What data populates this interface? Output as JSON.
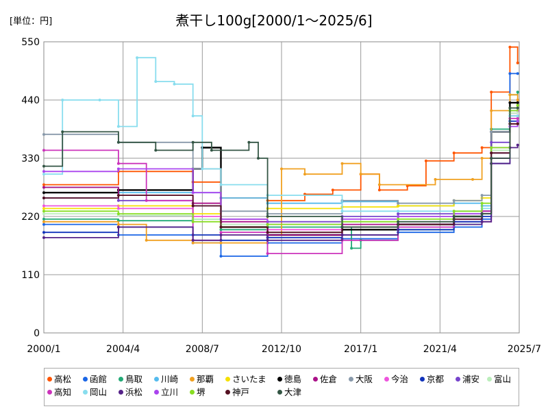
{
  "unit_label": "[単位：円]",
  "chart_data": {
    "type": "line",
    "title": "煮干し100g[2000/1～2025/6]",
    "x_tick_labels": [
      "2000/1",
      "2004/4",
      "2008/7",
      "2012/10",
      "2017/1",
      "2021/4",
      "2025/7"
    ],
    "y_tick_labels": [
      "0",
      "110",
      "220",
      "330",
      "440",
      "550"
    ],
    "ylim": [
      0,
      550
    ],
    "x_range": [
      "2000/1",
      "2025/7"
    ],
    "grid": true,
    "legend_position": "bottom",
    "series": [
      {
        "name": "高松",
        "color": "#ff5500",
        "points": [
          [
            "2000/1",
            280
          ],
          [
            "2004/1",
            305
          ],
          [
            "2008/1",
            285
          ],
          [
            "2009/7",
            255
          ],
          [
            "2012/1",
            250
          ],
          [
            "2014/1",
            262
          ],
          [
            "2015/7",
            270
          ],
          [
            "2017/1",
            300
          ],
          [
            "2018/1",
            270
          ],
          [
            "2019/7",
            278
          ],
          [
            "2020/7",
            325
          ],
          [
            "2022/1",
            340
          ],
          [
            "2023/7",
            350
          ],
          [
            "2024/1",
            455
          ],
          [
            "2025/1",
            540
          ],
          [
            "2025/6",
            510
          ]
        ]
      },
      {
        "name": "函館",
        "color": "#1a66e6",
        "points": [
          [
            "2000/1",
            205
          ],
          [
            "2004/1",
            185
          ],
          [
            "2008/1",
            170
          ],
          [
            "2009/7",
            145
          ],
          [
            "2012/1",
            170
          ],
          [
            "2016/1",
            178
          ],
          [
            "2019/1",
            190
          ],
          [
            "2022/1",
            200
          ],
          [
            "2023/7",
            215
          ],
          [
            "2024/1",
            330
          ],
          [
            "2025/1",
            490
          ],
          [
            "2025/6",
            490
          ]
        ]
      },
      {
        "name": "鳥取",
        "color": "#22aa77",
        "points": [
          [
            "2000/1",
            215
          ],
          [
            "2004/1",
            212
          ],
          [
            "2008/1",
            215
          ],
          [
            "2009/7",
            195
          ],
          [
            "2012/1",
            200
          ],
          [
            "2016/7",
            160
          ],
          [
            "2017/1",
            175
          ],
          [
            "2019/1",
            195
          ],
          [
            "2022/1",
            205
          ],
          [
            "2023/7",
            225
          ],
          [
            "2024/1",
            385
          ],
          [
            "2025/1",
            450
          ],
          [
            "2025/6",
            455
          ]
        ]
      },
      {
        "name": "川崎",
        "color": "#55bbee",
        "points": [
          [
            "2000/1",
            275
          ],
          [
            "2004/1",
            265
          ],
          [
            "2008/1",
            265
          ],
          [
            "2009/7",
            255
          ],
          [
            "2012/1",
            245
          ],
          [
            "2016/1",
            248
          ],
          [
            "2019/1",
            240
          ],
          [
            "2022/1",
            245
          ],
          [
            "2023/7",
            240
          ],
          [
            "2024/1",
            350
          ],
          [
            "2025/1",
            420
          ],
          [
            "2025/6",
            430
          ]
        ]
      },
      {
        "name": "那覇",
        "color": "#f0a020",
        "points": [
          [
            "2000/1",
            210
          ],
          [
            "2004/1",
            205
          ],
          [
            "2005/7",
            175
          ],
          [
            "2008/1",
            170
          ],
          [
            "2009/7",
            170
          ],
          [
            "2012/1",
            185
          ],
          [
            "2012/10",
            310
          ],
          [
            "2014/1",
            300
          ],
          [
            "2016/1",
            320
          ],
          [
            "2017/1",
            300
          ],
          [
            "2018/1",
            280
          ],
          [
            "2021/1",
            290
          ],
          [
            "2023/1",
            290
          ],
          [
            "2023/7",
            330
          ],
          [
            "2024/1",
            420
          ],
          [
            "2025/1",
            450
          ],
          [
            "2025/6",
            440
          ]
        ]
      },
      {
        "name": "さいたま",
        "color": "#f5e000",
        "points": [
          [
            "2000/1",
            235
          ],
          [
            "2004/1",
            240
          ],
          [
            "2008/1",
            225
          ],
          [
            "2009/7",
            215
          ],
          [
            "2012/1",
            235
          ],
          [
            "2016/1",
            238
          ],
          [
            "2019/1",
            240
          ],
          [
            "2022/1",
            250
          ],
          [
            "2023/7",
            255
          ],
          [
            "2024/1",
            340
          ],
          [
            "2025/1",
            425
          ],
          [
            "2025/6",
            430
          ]
        ]
      },
      {
        "name": "徳島",
        "color": "#000000",
        "points": [
          [
            "2000/1",
            265
          ],
          [
            "2004/1",
            270
          ],
          [
            "2008/1",
            310
          ],
          [
            "2008/7",
            350
          ],
          [
            "2009/7",
            200
          ],
          [
            "2012/1",
            185
          ],
          [
            "2016/1",
            195
          ],
          [
            "2019/1",
            205
          ],
          [
            "2022/1",
            220
          ],
          [
            "2023/7",
            230
          ],
          [
            "2024/1",
            380
          ],
          [
            "2025/1",
            435
          ],
          [
            "2025/6",
            435
          ]
        ]
      },
      {
        "name": "佐倉",
        "color": "#aa1188",
        "points": [
          [
            "2000/1",
            275
          ],
          [
            "2004/1",
            260
          ],
          [
            "2008/1",
            245
          ],
          [
            "2009/7",
            210
          ],
          [
            "2012/1",
            185
          ],
          [
            "2016/1",
            205
          ],
          [
            "2019/1",
            205
          ],
          [
            "2022/1",
            210
          ],
          [
            "2023/7",
            210
          ],
          [
            "2024/1",
            330
          ],
          [
            "2025/1",
            395
          ],
          [
            "2025/6",
            395
          ]
        ]
      },
      {
        "name": "大阪",
        "color": "#8899aa",
        "points": [
          [
            "2000/1",
            375
          ],
          [
            "2004/1",
            360
          ],
          [
            "2008/1",
            310
          ],
          [
            "2009/7",
            230
          ],
          [
            "2012/1",
            225
          ],
          [
            "2016/1",
            250
          ],
          [
            "2019/1",
            245
          ],
          [
            "2022/1",
            250
          ],
          [
            "2023/7",
            260
          ],
          [
            "2024/1",
            380
          ],
          [
            "2025/1",
            420
          ],
          [
            "2025/6",
            420
          ]
        ]
      },
      {
        "name": "今治",
        "color": "#ee55dd",
        "points": [
          [
            "2000/1",
            240
          ],
          [
            "2004/1",
            235
          ],
          [
            "2008/1",
            220
          ],
          [
            "2009/7",
            205
          ],
          [
            "2012/1",
            195
          ],
          [
            "2016/1",
            200
          ],
          [
            "2019/1",
            205
          ],
          [
            "2022/1",
            215
          ],
          [
            "2023/7",
            225
          ],
          [
            "2024/1",
            340
          ],
          [
            "2025/1",
            415
          ],
          [
            "2025/6",
            420
          ]
        ]
      },
      {
        "name": "京都",
        "color": "#1133bb",
        "points": [
          [
            "2000/1",
            190
          ],
          [
            "2004/1",
            200
          ],
          [
            "2008/1",
            185
          ],
          [
            "2009/7",
            175
          ],
          [
            "2012/1",
            180
          ],
          [
            "2016/1",
            185
          ],
          [
            "2019/1",
            195
          ],
          [
            "2022/1",
            210
          ],
          [
            "2023/7",
            220
          ],
          [
            "2024/1",
            320
          ],
          [
            "2025/1",
            400
          ],
          [
            "2025/6",
            400
          ]
        ]
      },
      {
        "name": "浦安",
        "color": "#7744cc",
        "points": [
          [
            "2000/1",
            255
          ],
          [
            "2004/1",
            250
          ],
          [
            "2008/1",
            240
          ],
          [
            "2009/7",
            215
          ],
          [
            "2012/1",
            210
          ],
          [
            "2016/1",
            220
          ],
          [
            "2019/1",
            225
          ],
          [
            "2022/1",
            225
          ],
          [
            "2023/7",
            230
          ],
          [
            "2024/1",
            360
          ],
          [
            "2025/1",
            410
          ],
          [
            "2025/6",
            410
          ]
        ]
      },
      {
        "name": "富山",
        "color": "#bbeebb",
        "points": [
          [
            "2000/1",
            225
          ],
          [
            "2004/1",
            222
          ],
          [
            "2008/1",
            215
          ],
          [
            "2009/7",
            205
          ],
          [
            "2012/1",
            205
          ],
          [
            "2016/1",
            210
          ],
          [
            "2019/1",
            220
          ],
          [
            "2022/1",
            225
          ],
          [
            "2023/7",
            230
          ],
          [
            "2024/1",
            345
          ],
          [
            "2025/1",
            415
          ],
          [
            "2025/6",
            425
          ]
        ]
      },
      {
        "name": "高知",
        "color": "#cc33bb",
        "points": [
          [
            "2000/1",
            345
          ],
          [
            "2004/1",
            320
          ],
          [
            "2005/7",
            250
          ],
          [
            "2008/1",
            175
          ],
          [
            "2009/7",
            190
          ],
          [
            "2012/1",
            150
          ],
          [
            "2016/1",
            175
          ],
          [
            "2019/1",
            200
          ],
          [
            "2022/1",
            215
          ],
          [
            "2023/7",
            230
          ],
          [
            "2024/1",
            350
          ],
          [
            "2025/1",
            405
          ],
          [
            "2025/6",
            405
          ]
        ]
      },
      {
        "name": "岡山",
        "color": "#88ddee",
        "points": [
          [
            "2000/1",
            300
          ],
          [
            "2001/1",
            440
          ],
          [
            "2003/1",
            440
          ],
          [
            "2004/1",
            390
          ],
          [
            "2005/1",
            520
          ],
          [
            "2006/1",
            475
          ],
          [
            "2007/1",
            470
          ],
          [
            "2008/1",
            410
          ],
          [
            "2008/7",
            310
          ],
          [
            "2009/7",
            280
          ],
          [
            "2012/1",
            260
          ],
          [
            "2016/1",
            230
          ],
          [
            "2019/1",
            230
          ],
          [
            "2022/1",
            230
          ],
          [
            "2023/7",
            235
          ],
          [
            "2024/1",
            340
          ],
          [
            "2025/1",
            410
          ],
          [
            "2025/6",
            410
          ]
        ]
      },
      {
        "name": "浜松",
        "color": "#552288",
        "points": [
          [
            "2000/1",
            180
          ],
          [
            "2004/1",
            200
          ],
          [
            "2008/1",
            175
          ],
          [
            "2009/7",
            185
          ],
          [
            "2012/1",
            175
          ],
          [
            "2016/1",
            185
          ],
          [
            "2019/1",
            205
          ],
          [
            "2022/1",
            205
          ],
          [
            "2023/7",
            210
          ],
          [
            "2024/1",
            320
          ],
          [
            "2025/1",
            350
          ],
          [
            "2025/6",
            355
          ]
        ]
      },
      {
        "name": "立川",
        "color": "#aa44ee",
        "points": [
          [
            "2000/1",
            305
          ],
          [
            "2004/1",
            310
          ],
          [
            "2008/1",
            265
          ],
          [
            "2009/7",
            215
          ],
          [
            "2012/1",
            205
          ],
          [
            "2016/1",
            215
          ],
          [
            "2019/1",
            220
          ],
          [
            "2022/1",
            225
          ],
          [
            "2023/7",
            225
          ],
          [
            "2024/1",
            340
          ],
          [
            "2025/1",
            390
          ],
          [
            "2025/6",
            400
          ]
        ]
      },
      {
        "name": "堺",
        "color": "#88dd22",
        "points": [
          [
            "2000/1",
            230
          ],
          [
            "2004/1",
            225
          ],
          [
            "2008/1",
            210
          ],
          [
            "2009/7",
            200
          ],
          [
            "2012/1",
            205
          ],
          [
            "2016/1",
            210
          ],
          [
            "2019/1",
            215
          ],
          [
            "2022/1",
            230
          ],
          [
            "2023/7",
            245
          ],
          [
            "2024/1",
            350
          ],
          [
            "2025/1",
            420
          ],
          [
            "2025/6",
            430
          ]
        ]
      },
      {
        "name": "神戸",
        "color": "#551122",
        "points": [
          [
            "2000/1",
            255
          ],
          [
            "2004/1",
            260
          ],
          [
            "2008/1",
            240
          ],
          [
            "2009/7",
            200
          ],
          [
            "2012/1",
            190
          ],
          [
            "2016/1",
            200
          ],
          [
            "2019/1",
            205
          ],
          [
            "2022/1",
            215
          ],
          [
            "2023/7",
            225
          ],
          [
            "2024/1",
            340
          ],
          [
            "2025/1",
            395
          ],
          [
            "2025/6",
            395
          ]
        ]
      },
      {
        "name": "大津",
        "color": "#335544",
        "points": [
          [
            "2000/1",
            315
          ],
          [
            "2001/1",
            380
          ],
          [
            "2004/1",
            360
          ],
          [
            "2006/1",
            345
          ],
          [
            "2008/1",
            360
          ],
          [
            "2009/1",
            345
          ],
          [
            "2011/1",
            360
          ],
          [
            "2011/7",
            330
          ],
          [
            "2012/1",
            220
          ],
          [
            "2016/1",
            200
          ],
          [
            "2019/1",
            210
          ],
          [
            "2022/1",
            220
          ],
          [
            "2023/7",
            225
          ],
          [
            "2024/1",
            330
          ],
          [
            "2025/1",
            425
          ],
          [
            "2025/6",
            425
          ]
        ]
      }
    ]
  }
}
